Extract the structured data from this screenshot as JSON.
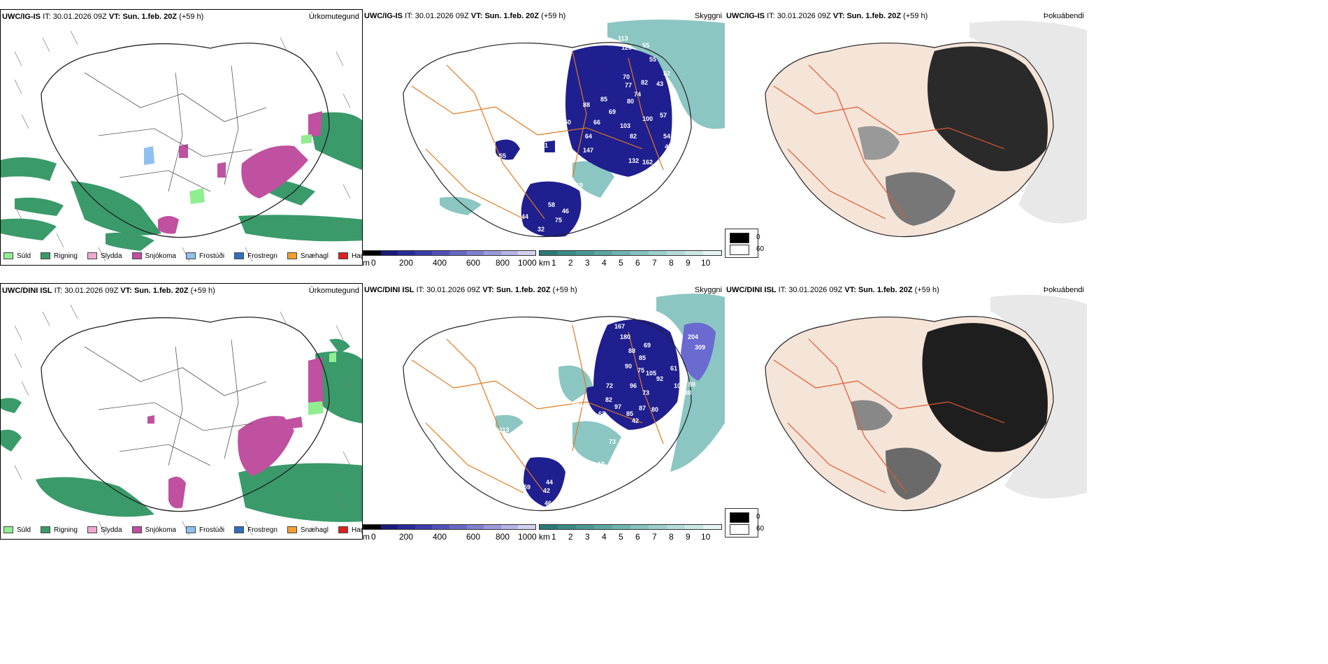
{
  "panels": [
    {
      "model": "UWC/IG-IS",
      "it_label": "IT:",
      "it": "30.01.2026 09Z",
      "vt_label": "VT:",
      "vt": "Sun. 1.feb. 20Z",
      "lead": "(+59 h)",
      "title": "Úrkomutegund"
    },
    {
      "model": "UWC/IG-IS",
      "it_label": "IT:",
      "it": "30.01.2026 09Z",
      "vt_label": "VT:",
      "vt": "Sun. 1.feb. 20Z",
      "lead": "(+59 h)",
      "title": "Skyggni"
    },
    {
      "model": "UWC/IG-IS",
      "it_label": "IT:",
      "it": "30.01.2026 09Z",
      "vt_label": "VT:",
      "vt": "Sun. 1.feb. 20Z",
      "lead": "(+59 h)",
      "title": "Þokuábendi"
    },
    {
      "model": "UWC/DINI ISL",
      "it_label": "IT:",
      "it": "30.01.2026 09Z",
      "vt_label": "VT:",
      "vt": "Sun. 1.feb. 20Z",
      "lead": "(+59 h)",
      "title": "Úrkomutegund"
    },
    {
      "model": "UWC/DINI ISL",
      "it_label": "IT:",
      "it": "30.01.2026 09Z",
      "vt_label": "VT:",
      "vt": "Sun. 1.feb. 20Z",
      "lead": "(+59 h)",
      "title": "Skyggni"
    },
    {
      "model": "UWC/DINI ISL",
      "it_label": "IT:",
      "it": "30.01.2026 09Z",
      "vt_label": "VT:",
      "vt": "Sun. 1.feb. 20Z",
      "lead": "(+59 h)",
      "title": "Þokuábendi"
    }
  ],
  "precip_legend": [
    {
      "label": "Súld",
      "color": "#90ee90"
    },
    {
      "label": "Rigning",
      "color": "#3a9a6a"
    },
    {
      "label": "Slydda",
      "color": "#f0a8d0"
    },
    {
      "label": "Snjókoma",
      "color": "#c050a0"
    },
    {
      "label": "Frostúði",
      "color": "#90c0f0"
    },
    {
      "label": "Frostregn",
      "color": "#3070c0"
    },
    {
      "label": "Snæhagl",
      "color": "#f0a030"
    },
    {
      "label": "Haglél",
      "color": "#e02020"
    }
  ],
  "ceiling_bar": {
    "unit": "m",
    "ticks": [
      "0",
      "200",
      "400",
      "600",
      "800",
      "1000"
    ],
    "colors": [
      "#000000",
      "#1a1a7a",
      "#2a2a9a",
      "#3b3bab",
      "#5050b8",
      "#6868c4",
      "#8080d0",
      "#9a9adc",
      "#b4b4e6",
      "#d0d0f0"
    ]
  },
  "vis_bar": {
    "unit": "km",
    "ticks": [
      "1",
      "2",
      "3",
      "4",
      "5",
      "6",
      "7",
      "8",
      "9",
      "10"
    ],
    "colors": [
      "#2a7a78",
      "#3a8a88",
      "#4a9896",
      "#5ca6a4",
      "#70b4b2",
      "#86c2c0",
      "#9ccfcd",
      "#b4dcda",
      "#cce8e6",
      "#e6f4f3"
    ]
  },
  "fog_legend": {
    "max_label": "0",
    "min_label": "60"
  },
  "ceiling_values_top": [
    "113",
    "125",
    "55",
    "55",
    "52",
    "70",
    "77",
    "82",
    "43",
    "74",
    "80",
    "88",
    "85",
    "69",
    "66",
    "103",
    "100",
    "57",
    "38",
    "150",
    "64",
    "82",
    "54",
    "44",
    "49",
    "132",
    "162",
    "53",
    "55",
    "121",
    "147",
    "58",
    "46",
    "69",
    "44",
    "75",
    "32",
    "52"
  ],
  "ceiling_values_bottom": [
    "167",
    "180",
    "69",
    "88",
    "85",
    "90",
    "75",
    "105",
    "92",
    "61",
    "62",
    "103",
    "88",
    "88",
    "72",
    "82",
    "96",
    "73",
    "97",
    "85",
    "87",
    "80",
    "63",
    "84",
    "42",
    "90",
    "113",
    "123",
    "73",
    "75",
    "19",
    "44",
    "42",
    "46",
    "59",
    "67",
    "204",
    "309"
  ]
}
